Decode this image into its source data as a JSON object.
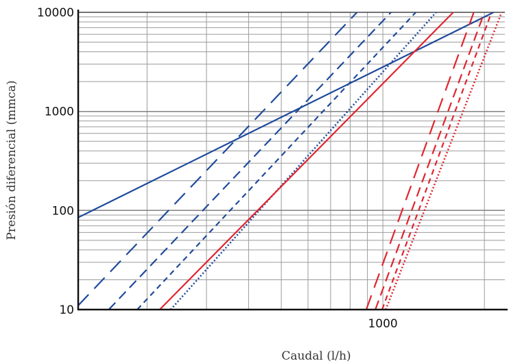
{
  "chart_data": {
    "type": "line",
    "title": "",
    "xlabel": "Caudal (l/h)",
    "ylabel": "Presión diferencial (mmca)",
    "x_scale": "log",
    "y_scale": "log",
    "xlim": [
      125,
      2300
    ],
    "ylim": [
      10,
      10000
    ],
    "x_tick_labels": [
      {
        "value": 1000,
        "label": "1000"
      }
    ],
    "y_tick_labels": [
      {
        "value": 10,
        "label": "10"
      },
      {
        "value": 100,
        "label": "100"
      },
      {
        "value": 1000,
        "label": "1000"
      },
      {
        "value": 10000,
        "label": "10000"
      }
    ],
    "grid": true,
    "legend": "none",
    "colors": {
      "blue": "#1e4a9b",
      "red": "#e0242f",
      "grid": "#9a9a9a",
      "axis": "#111111"
    },
    "series": [
      {
        "color": "#1e4a9b",
        "dash": "solid",
        "x": [
          125,
          2130
        ],
        "y": [
          85,
          10000
        ]
      },
      {
        "color": "#1e4a9b",
        "dash": "long",
        "x": [
          125,
          838
        ],
        "y": [
          11,
          10000
        ]
      },
      {
        "color": "#1e4a9b",
        "dash": "medium",
        "x": [
          154,
          1057
        ],
        "y": [
          10,
          10000
        ]
      },
      {
        "color": "#1e4a9b",
        "dash": "short",
        "x": [
          187,
          1252
        ],
        "y": [
          10,
          10000
        ]
      },
      {
        "color": "#1e4a9b",
        "dash": "dotted",
        "x": [
          235,
          1438
        ],
        "y": [
          10,
          10000
        ]
      },
      {
        "color": "#e0242f",
        "dash": "solid",
        "x": [
          218,
          1617
        ],
        "y": [
          10,
          10000
        ]
      },
      {
        "color": "#e0242f",
        "dash": "long",
        "x": [
          893,
          1860
        ],
        "y": [
          10,
          10000
        ]
      },
      {
        "color": "#e0242f",
        "dash": "medium",
        "x": [
          950,
          2000
        ],
        "y": [
          10,
          10000
        ]
      },
      {
        "color": "#e0242f",
        "dash": "short",
        "x": [
          995,
          2100
        ],
        "y": [
          10,
          10000
        ]
      },
      {
        "color": "#e0242f",
        "dash": "dotted",
        "x": [
          1020,
          2250
        ],
        "y": [
          10,
          10000
        ]
      }
    ]
  }
}
